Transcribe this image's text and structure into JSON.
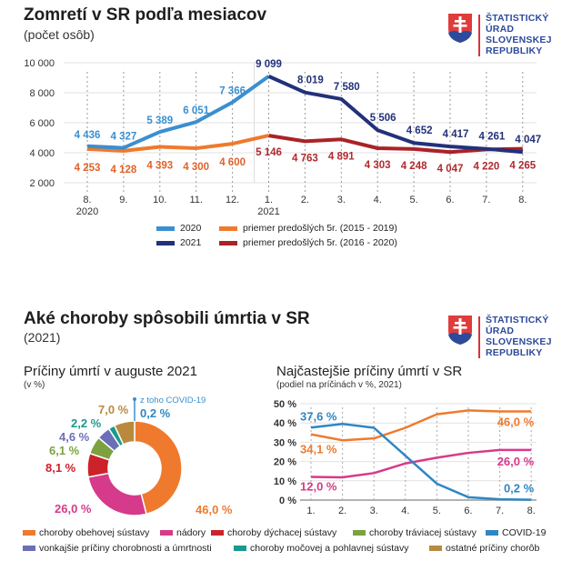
{
  "section1": {
    "title": "Zomretí v SR podľa mesiacov",
    "subtitle": "(počet osôb)"
  },
  "section2": {
    "title": "Aké choroby spôsobili úmrtia v SR",
    "subtitle": "(2021)"
  },
  "logo": {
    "lines": [
      "ŠTATISTICKÝ",
      "ÚRAD",
      "SLOVENSKEJ",
      "REPUBLIKY"
    ]
  },
  "chart_data": [
    {
      "type": "line",
      "title": "Zomretí v SR podľa mesiacov",
      "subtitle": "(počet osôb)",
      "categories": [
        "8.",
        "9.",
        "10.",
        "11.",
        "12.",
        "1.",
        "2.",
        "3.",
        "4.",
        "5.",
        "6.",
        "7.",
        "8."
      ],
      "year_labels": [
        {
          "index": 0,
          "label": "2020"
        },
        {
          "index": 5,
          "label": "2021"
        }
      ],
      "yticks": [
        2000,
        4000,
        6000,
        8000,
        10000
      ],
      "ytick_labels": [
        "2 000",
        "4 000",
        "6 000",
        "8 000",
        "10 000"
      ],
      "ylim": [
        2000,
        10000
      ],
      "grid": true,
      "series": [
        {
          "name": "2020",
          "color": "#3a8fd0",
          "start": 0,
          "values": [
            4436,
            4327,
            5389,
            6051,
            7366,
            9099
          ],
          "labels": [
            "4 436",
            "4 327",
            "5 389",
            "6 051",
            "7 366"
          ]
        },
        {
          "name": "2021",
          "color": "#23317a",
          "start": 5,
          "values": [
            9099,
            8019,
            7580,
            5506,
            4652,
            4417,
            4261,
            4047
          ],
          "labels": [
            "9 099",
            "8 019",
            "7 580",
            "5 506",
            "4 652",
            "4 417",
            "4 261",
            "4 047"
          ]
        },
        {
          "name": "priemer predošlých 5r. (2015 - 2019)",
          "color": "#ef7a2d",
          "start": 0,
          "values": [
            4253,
            4128,
            4393,
            4300,
            4600,
            5146
          ],
          "labels": [
            "4 253",
            "4 128",
            "4 393",
            "4 300",
            "4 600"
          ]
        },
        {
          "name": "priemer predošlých 5r. (2016 - 2020)",
          "color": "#a92327",
          "start": 5,
          "values": [
            5146,
            4763,
            4891,
            4303,
            4248,
            4047,
            4220,
            4265
          ],
          "labels": [
            "5 146",
            "4 763",
            "4 891",
            "4 303",
            "4 248",
            "4 047",
            "4 220",
            "4 265"
          ]
        }
      ],
      "legend": [
        {
          "label": "2020",
          "color": "#3a8fd0"
        },
        {
          "label": "priemer predošlých 5r. (2015 - 2019)",
          "color": "#ef7a2d"
        },
        {
          "label": "2021",
          "color": "#23317a"
        },
        {
          "label": "priemer predošlých 5r. (2016 - 2020)",
          "color": "#a92327"
        }
      ],
      "legend_position": "bottom"
    },
    {
      "type": "pie",
      "title": "Príčiny úmrtí v auguste 2021",
      "subtitle": "(v %)",
      "donut": true,
      "slices": [
        {
          "name": "choroby obehovej sústavy",
          "value": 46.0,
          "label": "46,0 %",
          "color": "#ef7a2d"
        },
        {
          "name": "nádory",
          "value": 26.0,
          "label": "26,0 %",
          "color": "#d63a8a"
        },
        {
          "name": "choroby dýchacej sústavy",
          "value": 8.1,
          "label": "8,1 %",
          "color": "#cc2229"
        },
        {
          "name": "choroby tráviacej sústavy",
          "value": 6.1,
          "label": "6,1 %",
          "color": "#7ba23f"
        },
        {
          "name": "vonkajšie príčiny chorobnosti a úmrtnosti",
          "value": 4.6,
          "label": "4,6 %",
          "color": "#6a6fb8"
        },
        {
          "name": "choroby močovej a pohlavnej sústavy",
          "value": 2.2,
          "label": "2,2 %",
          "color": "#1a9a8c"
        },
        {
          "name": "ostatné príčiny chorôb",
          "value": 7.0,
          "label": "7,0 %",
          "color": "#b98a3e"
        }
      ],
      "annotation": {
        "text": "z toho COVID-19",
        "value": 0.2,
        "label": "0,2 %",
        "color": "#3a8fd0"
      }
    },
    {
      "type": "line",
      "title": "Najčastejšie príčiny úmrtí v SR",
      "subtitle": "(podiel na príčinách v %, 2021)",
      "categories": [
        "1.",
        "2.",
        "3.",
        "4.",
        "5.",
        "6.",
        "7.",
        "8."
      ],
      "yticks": [
        0,
        10,
        20,
        30,
        40,
        50
      ],
      "ytick_labels": [
        "0 %",
        "10 %",
        "20 %",
        "30 %",
        "40 %",
        "50 %"
      ],
      "ylim": [
        0,
        50
      ],
      "grid": true,
      "series": [
        {
          "name": "choroby obehovej sústavy",
          "color": "#ef7a2d",
          "values": [
            34.1,
            31.0,
            32.0,
            37.5,
            44.5,
            46.5,
            46.0,
            46.0
          ],
          "first_label": "34,1 %",
          "last_label": "46,0 %"
        },
        {
          "name": "nádory",
          "color": "#d63a8a",
          "values": [
            12.0,
            11.8,
            14.0,
            19.0,
            22.0,
            24.5,
            26.0,
            26.0
          ],
          "first_label": "12,0 %",
          "last_label": "26,0 %"
        },
        {
          "name": "COVID-19",
          "color": "#2f86c4",
          "values": [
            37.6,
            39.5,
            37.5,
            23.0,
            8.5,
            1.5,
            0.4,
            0.2
          ],
          "first_label": "37,6 %",
          "last_label": "0,2 %"
        }
      ]
    }
  ],
  "bottom_legend": [
    {
      "label": "choroby obehovej sústavy",
      "color": "#ef7a2d"
    },
    {
      "label": "nádory",
      "color": "#d63a8a"
    },
    {
      "label": "choroby dýchacej sústavy",
      "color": "#cc2229"
    },
    {
      "label": "choroby tráviacej sústavy",
      "color": "#7ba23f"
    },
    {
      "label": "COVID-19",
      "color": "#2f86c4"
    },
    {
      "label": "vonkajšie príčiny chorobnosti a úmrtnosti",
      "color": "#6a6fb8"
    },
    {
      "label": "choroby močovej a pohlavnej sústavy",
      "color": "#1a9a8c"
    },
    {
      "label": "ostatné príčiny chorôb",
      "color": "#b98a3e"
    }
  ]
}
